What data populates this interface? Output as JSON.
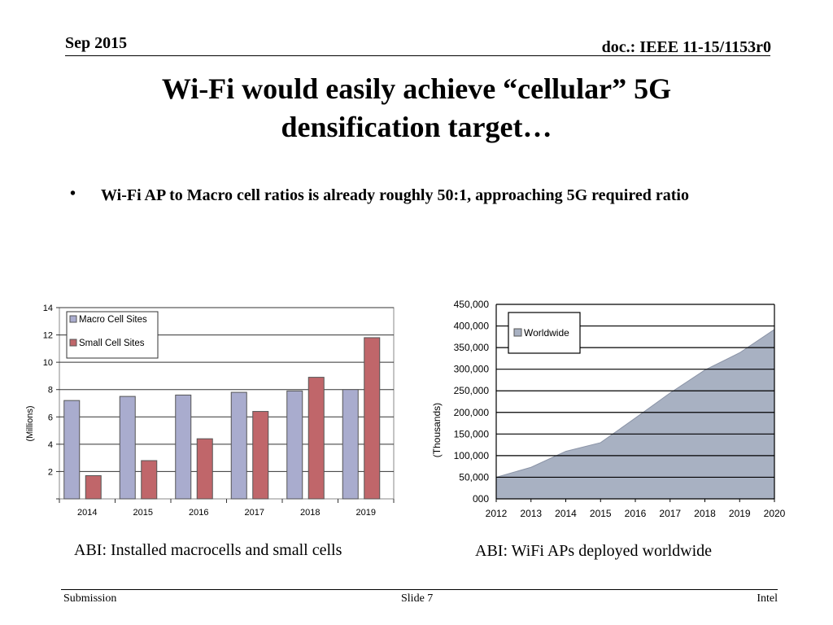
{
  "header": {
    "date": "Sep 2015",
    "doc_id": "doc.: IEEE 11-15/1153r0"
  },
  "slide": {
    "title": "Wi-Fi would easily achieve “cellular” 5G densification target…",
    "bullet_marker": "•",
    "bullet_text": "Wi-Fi AP to Macro cell ratios is already roughly 50:1, approaching 5G required ratio"
  },
  "captions": {
    "left": "ABI: Installed macrocells and small cells",
    "right": "ABI: WiFi APs deployed worldwide"
  },
  "footer": {
    "left": "Submission",
    "center": "Slide 7",
    "right": "Intel"
  },
  "chart_data": [
    {
      "type": "bar",
      "categories": [
        "2014",
        "2015",
        "2016",
        "2017",
        "2018",
        "2019"
      ],
      "series": [
        {
          "name": "Macro Cell Sites",
          "values": [
            7.2,
            7.5,
            7.6,
            7.8,
            7.9,
            8.0
          ],
          "color": "#a9acce"
        },
        {
          "name": "Small Cell Sites",
          "values": [
            1.7,
            2.8,
            4.4,
            6.4,
            8.9,
            11.8
          ],
          "color": "#c0666a"
        }
      ],
      "ylabel": "(Millions)",
      "ylim": [
        0,
        14
      ],
      "yticks": [
        2,
        4,
        6,
        8,
        10,
        12,
        14
      ],
      "grid": true,
      "legend": "top-left"
    },
    {
      "type": "area",
      "x": [
        "2012",
        "2013",
        "2014",
        "2015",
        "2016",
        "2017",
        "2018",
        "2019",
        "2020"
      ],
      "series": [
        {
          "name": "Worldwide",
          "values": [
            50000,
            73000,
            110000,
            130000,
            187000,
            245000,
            298000,
            338000,
            392000
          ],
          "color": "#a8b1c2"
        }
      ],
      "ylabel": "(Thousands)",
      "ylim": [
        0,
        450000
      ],
      "yticks": [
        "000",
        "50,000",
        "100,000",
        "150,000",
        "200,000",
        "250,000",
        "300,000",
        "350,000",
        "400,000",
        "450,000"
      ],
      "grid": true,
      "legend": "top-left"
    }
  ]
}
